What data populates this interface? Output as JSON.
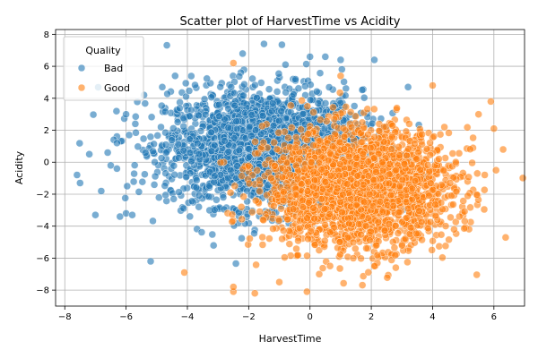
{
  "chart_data": {
    "type": "scatter",
    "title": "Scatter plot of HarvestTime vs Acidity",
    "xlabel": "HarvestTime",
    "ylabel": "Acidity",
    "xlim": [
      -8.3,
      7.0
    ],
    "ylim": [
      -9.0,
      8.3
    ],
    "xticks": [
      -8,
      -6,
      -4,
      -2,
      0,
      2,
      4,
      6
    ],
    "yticks": [
      -8,
      -6,
      -4,
      -2,
      0,
      2,
      4,
      6,
      8
    ],
    "grid": true,
    "legend": {
      "title": "Quality",
      "placement": "top-left"
    },
    "series": [
      {
        "name": "Bad",
        "color": "#1f77b4",
        "center": [
          -1.5,
          0.9
        ],
        "spread": [
          1.6,
          1.8
        ],
        "count": 2400,
        "points": [
          [
            -7.6,
            -0.8
          ],
          [
            -7.5,
            -1.3
          ],
          [
            -7.2,
            0.5
          ],
          [
            -7.0,
            -3.3
          ],
          [
            -6.6,
            0.6
          ],
          [
            -6.5,
            -0.2
          ],
          [
            -6.4,
            1.4
          ],
          [
            -6.3,
            1.2
          ],
          [
            -6.3,
            -0.4
          ],
          [
            -6.2,
            -3.4
          ],
          [
            -6.0,
            3.0
          ],
          [
            -6.0,
            -3.2
          ],
          [
            -5.9,
            1.7
          ],
          [
            -5.8,
            -3.3
          ],
          [
            -5.7,
            2.4
          ],
          [
            -5.2,
            -6.2
          ],
          [
            -4.4,
            5.4
          ],
          [
            -1.5,
            7.4
          ],
          [
            -0.8,
            6.1
          ],
          [
            0.0,
            6.6
          ],
          [
            0.5,
            6.6
          ],
          [
            1.0,
            6.4
          ],
          [
            2.1,
            6.4
          ],
          [
            3.2,
            4.7
          ]
        ]
      },
      {
        "name": "Good",
        "color": "#ff7f0e",
        "center": [
          1.6,
          -1.6
        ],
        "spread": [
          1.5,
          1.8
        ],
        "count": 2400,
        "points": [
          [
            -4.1,
            -6.9
          ],
          [
            -2.5,
            6.2
          ],
          [
            -2.5,
            -8.1
          ],
          [
            -2.5,
            -7.8
          ],
          [
            -1.8,
            -8.2
          ],
          [
            -1.0,
            -7.5
          ],
          [
            -0.1,
            -8.1
          ],
          [
            0.3,
            -7.0
          ],
          [
            1.0,
            5.4
          ],
          [
            2.1,
            -6.5
          ],
          [
            2.8,
            -6.6
          ],
          [
            4.0,
            4.8
          ],
          [
            4.7,
            -4.2
          ],
          [
            5.5,
            3.0
          ],
          [
            5.7,
            -0.8
          ],
          [
            5.9,
            3.8
          ],
          [
            6.0,
            2.1
          ],
          [
            6.3,
            0.8
          ]
        ]
      }
    ]
  }
}
